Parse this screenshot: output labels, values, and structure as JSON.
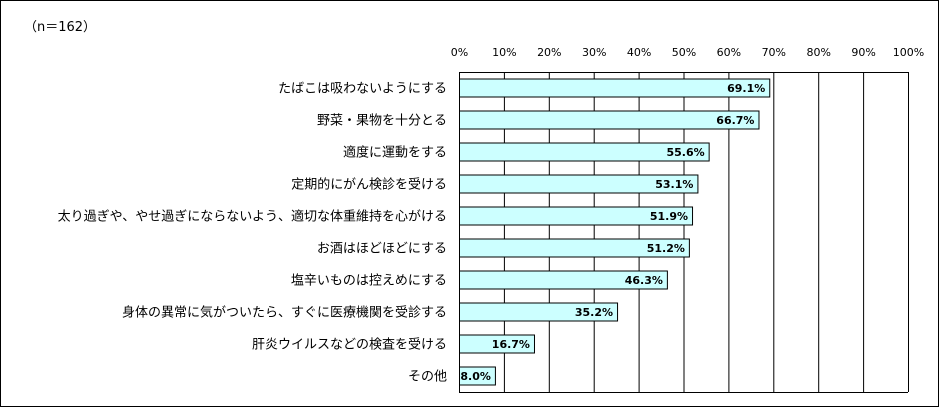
{
  "note": "（n＝162）",
  "chart_data": {
    "type": "bar",
    "orientation": "horizontal",
    "title": "",
    "xlabel": "",
    "ylabel": "",
    "xlim": [
      0,
      100
    ],
    "ticks": [
      "0%",
      "10%",
      "20%",
      "30%",
      "40%",
      "50%",
      "60%",
      "70%",
      "80%",
      "90%",
      "100%"
    ],
    "categories": [
      "たばこは吸わないようにする",
      "野菜・果物を十分とる",
      "適度に運動をする",
      "定期的にがん検診を受ける",
      "太り過ぎや、やせ過ぎにならないよう、適切な体重維持を心がける",
      "お酒はほどほどにする",
      "塩辛いものは控えめにする",
      "身体の異常に気がついたら、すぐに医療機関を受診する",
      "肝炎ウイルスなどの検査を受ける",
      "その他"
    ],
    "values": [
      69.1,
      66.7,
      55.6,
      53.1,
      51.9,
      51.2,
      46.3,
      35.2,
      16.7,
      8.0
    ],
    "value_labels": [
      "69.1%",
      "66.7%",
      "55.6%",
      "53.1%",
      "51.9%",
      "51.2%",
      "46.3%",
      "35.2%",
      "16.7%",
      "8.0%"
    ],
    "grid": true,
    "colors": {
      "bar_fill": "#ccffff",
      "bar_stroke": "#000000",
      "gridline": "#000000"
    }
  }
}
